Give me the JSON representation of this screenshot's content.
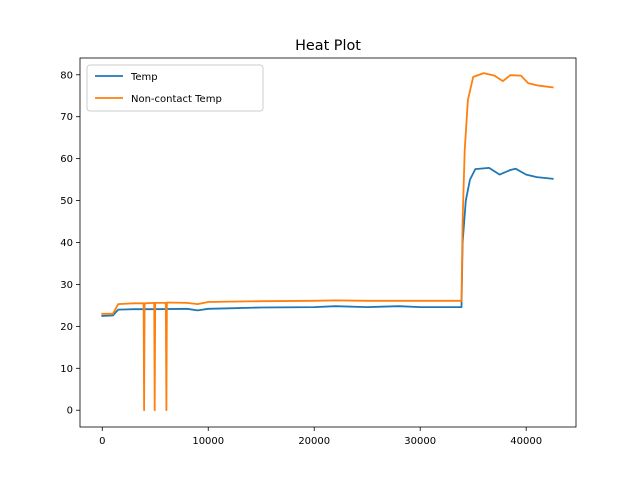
{
  "chart_data": {
    "type": "line",
    "title": "Heat Plot",
    "xlabel": "",
    "ylabel": "",
    "xlim": [
      -2100,
      44700
    ],
    "ylim": [
      -4,
      84
    ],
    "x_ticks": [
      0,
      10000,
      20000,
      30000,
      40000
    ],
    "y_ticks": [
      0,
      10,
      20,
      30,
      40,
      50,
      60,
      70,
      80
    ],
    "grid": false,
    "legend": {
      "position": "upper-left",
      "entries": [
        "Temp",
        "Non-contact Temp"
      ]
    },
    "series": [
      {
        "name": "Temp",
        "color": "#1f77b4",
        "points": [
          [
            0,
            22.5
          ],
          [
            1000,
            22.6
          ],
          [
            1500,
            24.0
          ],
          [
            3000,
            24.1
          ],
          [
            5000,
            24.1
          ],
          [
            8000,
            24.2
          ],
          [
            9000,
            23.8
          ],
          [
            10000,
            24.2
          ],
          [
            12000,
            24.3
          ],
          [
            15000,
            24.5
          ],
          [
            20000,
            24.6
          ],
          [
            22000,
            24.8
          ],
          [
            25000,
            24.6
          ],
          [
            28000,
            24.8
          ],
          [
            30000,
            24.6
          ],
          [
            33900,
            24.6
          ],
          [
            34000,
            40.0
          ],
          [
            34300,
            50.0
          ],
          [
            34700,
            55.0
          ],
          [
            35200,
            57.5
          ],
          [
            36500,
            57.8
          ],
          [
            37500,
            56.2
          ],
          [
            38500,
            57.3
          ],
          [
            39000,
            57.6
          ],
          [
            40000,
            56.2
          ],
          [
            41000,
            55.6
          ],
          [
            42500,
            55.2
          ]
        ]
      },
      {
        "name": "Non-contact Temp",
        "color": "#ff7f0e",
        "points": [
          [
            0,
            23.0
          ],
          [
            1000,
            23.0
          ],
          [
            1500,
            25.3
          ],
          [
            3000,
            25.5
          ],
          [
            3900,
            25.5
          ],
          [
            3950,
            0
          ],
          [
            4000,
            25.5
          ],
          [
            4900,
            25.6
          ],
          [
            4950,
            0
          ],
          [
            5000,
            25.6
          ],
          [
            6000,
            25.6
          ],
          [
            6050,
            0
          ],
          [
            6100,
            25.7
          ],
          [
            8000,
            25.6
          ],
          [
            9000,
            25.3
          ],
          [
            10000,
            25.8
          ],
          [
            12000,
            25.9
          ],
          [
            15000,
            26.0
          ],
          [
            20000,
            26.1
          ],
          [
            22000,
            26.2
          ],
          [
            25000,
            26.1
          ],
          [
            30000,
            26.1
          ],
          [
            33900,
            26.1
          ],
          [
            34000,
            45.0
          ],
          [
            34200,
            62.0
          ],
          [
            34500,
            74.0
          ],
          [
            35000,
            79.5
          ],
          [
            36000,
            80.4
          ],
          [
            37000,
            79.8
          ],
          [
            37800,
            78.5
          ],
          [
            38500,
            79.9
          ],
          [
            39500,
            79.8
          ],
          [
            40200,
            78.0
          ],
          [
            41000,
            77.5
          ],
          [
            42500,
            77.0
          ]
        ]
      }
    ]
  }
}
